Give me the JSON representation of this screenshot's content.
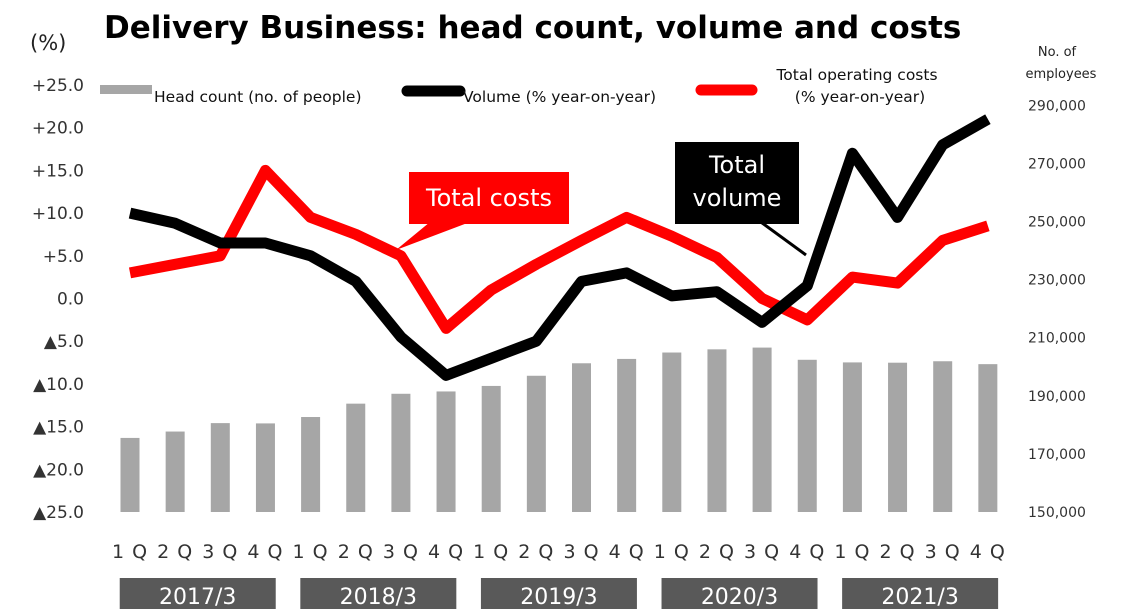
{
  "chart_data": {
    "type": "bar+line",
    "title": "Delivery Business: head count, volume and costs",
    "y_left_label": "(%)",
    "y_right_label_lines": [
      "No. of",
      "employees"
    ],
    "y_left_ticks": [
      "+25.0",
      "+20.0",
      "+15.0",
      "+10.0",
      "+5.0",
      "0.0",
      "▲5.0",
      "▲10.0",
      "▲15.0",
      "▲20.0",
      "▲25.0"
    ],
    "y_left_range": [
      -25,
      25
    ],
    "y_right_ticks": [
      "290,000",
      "270,000",
      "250,000",
      "230,000",
      "210,000",
      "190,000",
      "170,000",
      "150,000"
    ],
    "y_right_range": [
      150000,
      297000
    ],
    "categories": [
      "1 Q",
      "2 Q",
      "3 Q",
      "4 Q",
      "1 Q",
      "2 Q",
      "3 Q",
      "4 Q",
      "1 Q",
      "2 Q",
      "3 Q",
      "4 Q",
      "1 Q",
      "2 Q",
      "3 Q",
      "4 Q",
      "1 Q",
      "2 Q",
      "3 Q",
      "4 Q"
    ],
    "fiscal_years": [
      "2017/3",
      "2018/3",
      "2019/3",
      "2020/3",
      "2021/3"
    ],
    "legend": {
      "head_count": "Head count (no. of people)",
      "volume": "Volume (% year-on-year)",
      "costs_lines": [
        "Total operating costs",
        "(% year-on-year)"
      ]
    },
    "series": [
      {
        "name": "Head count (no. of people)",
        "axis": "right",
        "type": "bar",
        "color": "#a6a6a6",
        "values": [
          175500,
          177700,
          180600,
          180500,
          182700,
          187300,
          190700,
          191500,
          193400,
          196900,
          201200,
          202700,
          204900,
          206000,
          206600,
          202400,
          201500,
          201400,
          201900,
          200900
        ]
      },
      {
        "name": "Volume (% year-on-year)",
        "axis": "left",
        "type": "line",
        "color": "#000000",
        "values": [
          10.0,
          8.8,
          6.5,
          6.5,
          5.0,
          2.0,
          -4.5,
          -9.0,
          -7.0,
          -5.0,
          2.0,
          3.0,
          0.3,
          0.8,
          -2.8,
          1.5,
          17.0,
          9.5,
          18.0,
          21.0
        ]
      },
      {
        "name": "Total operating costs (% year-on-year)",
        "axis": "left",
        "type": "line",
        "color": "#ff0000",
        "values": [
          3.0,
          4.0,
          5.0,
          15.0,
          9.5,
          7.5,
          5.0,
          -3.5,
          1.0,
          4.0,
          6.8,
          9.5,
          7.3,
          4.8,
          0.0,
          -2.5,
          2.5,
          1.8,
          6.8,
          8.5
        ]
      }
    ],
    "annotations": {
      "total_costs": "Total costs",
      "total_volume_lines": [
        "Total",
        "volume"
      ]
    },
    "grid": false,
    "legend_placement": "top"
  }
}
